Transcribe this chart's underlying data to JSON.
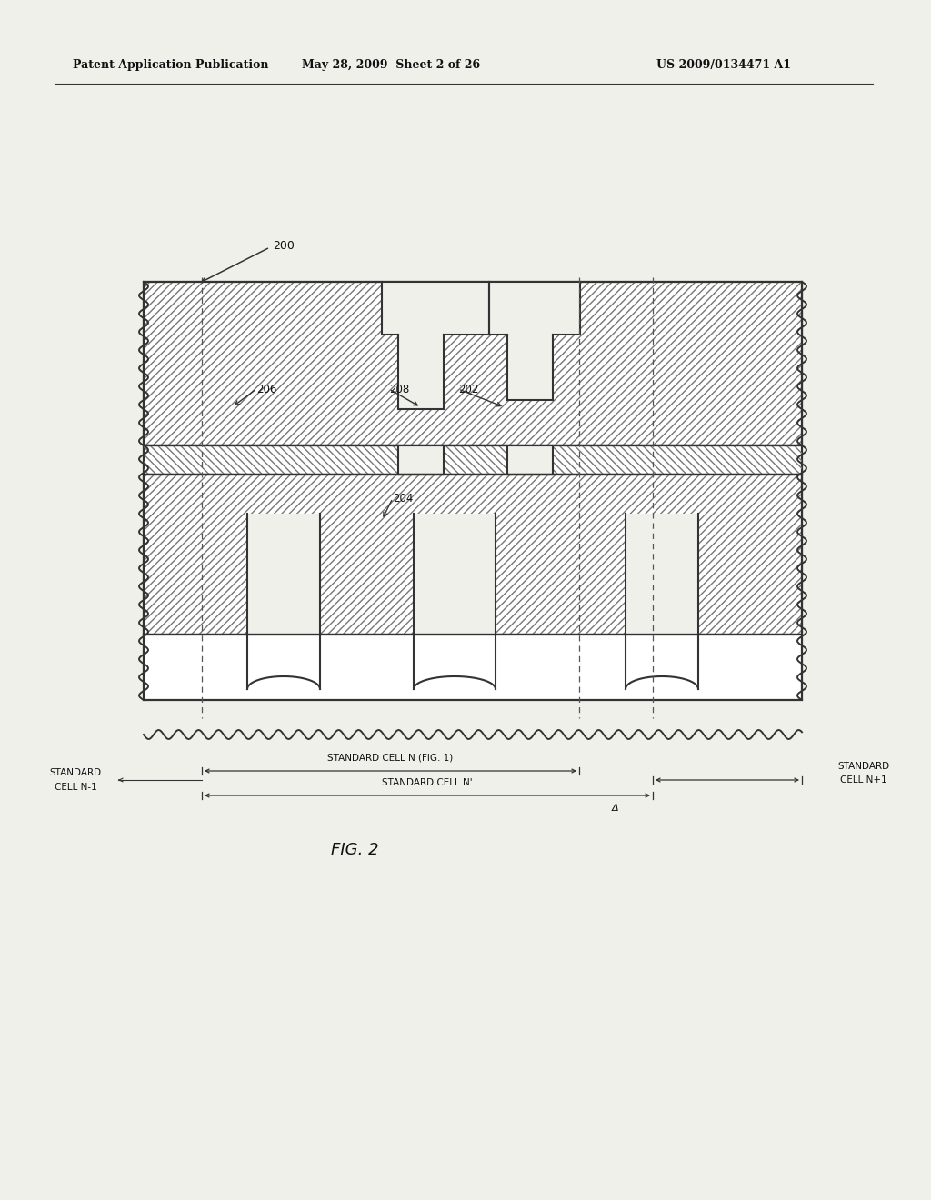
{
  "bg_color": "#f0f0eb",
  "header_left": "Patent Application Publication",
  "header_center": "May 28, 2009  Sheet 2 of 26",
  "header_right": "US 2009/0134471 A1",
  "fig_label": "FIG. 2",
  "label_200": "200",
  "label_202": "202",
  "label_204": "204",
  "label_206": "206",
  "label_208": "208",
  "annotation_std_cell_n_fig1": "STANDARD CELL N (FIG. 1)",
  "annotation_std_cell_n_prime": "STANDARD CELL N'",
  "annotation_std_cell_n_minus1_line1": "STANDARD",
  "annotation_std_cell_n_minus1_line2": "CELL N-1",
  "annotation_std_cell_n_plus1_line1": "STANDARD",
  "annotation_std_cell_n_plus1_line2": "CELL N+1",
  "delta_label": "Δ"
}
